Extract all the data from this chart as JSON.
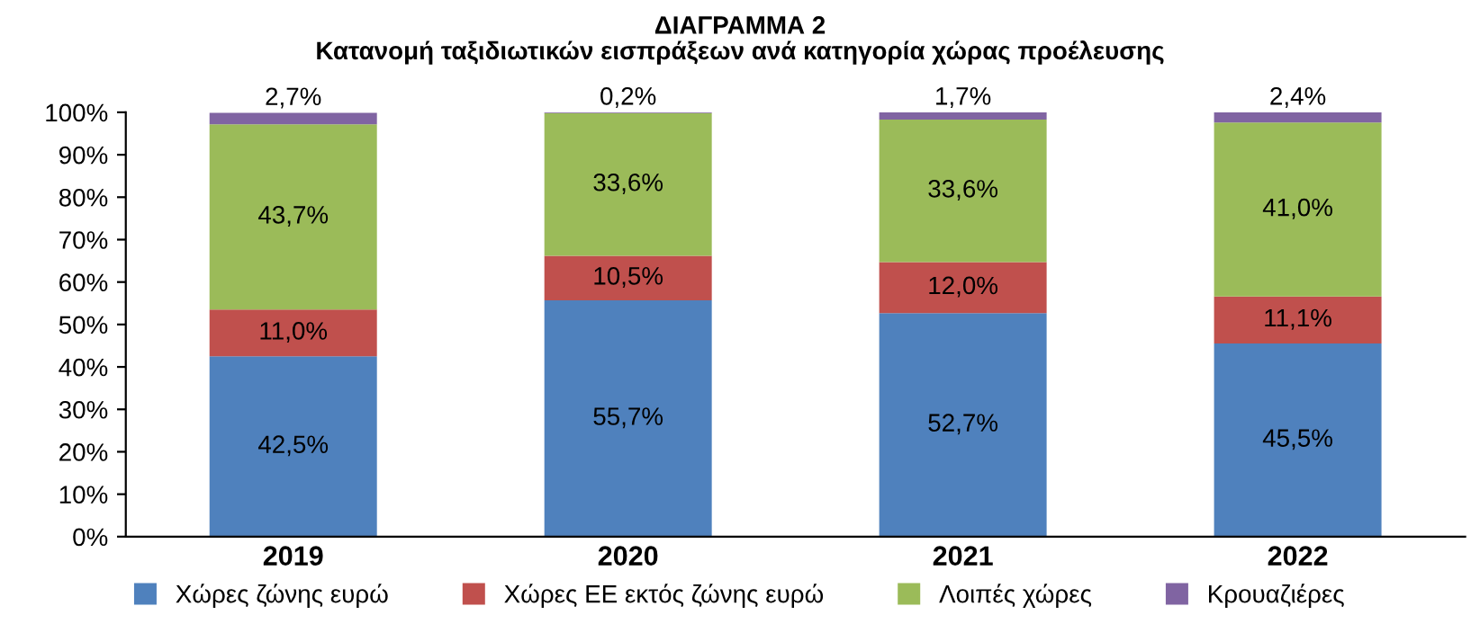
{
  "chart_data": {
    "type": "bar",
    "stacked": true,
    "title": "ΔΙΑΓΡΑΜΜΑ 2",
    "subtitle": "Κατανομή ταξιδιωτικών εισπράξεων ανά κατηγορία χώρας προέλευσης",
    "categories": [
      "2019",
      "2020",
      "2021",
      "2022"
    ],
    "series": [
      {
        "name": "Χώρες ζώνης ευρώ",
        "color": "#4f81bd",
        "values": [
          42.5,
          55.7,
          52.7,
          45.5
        ],
        "value_labels": [
          "42,5%",
          "55,7%",
          "52,7%",
          "45,5%"
        ]
      },
      {
        "name": "Χώρες ΕΕ εκτός ζώνης ευρώ",
        "color": "#c0504d",
        "values": [
          11.0,
          10.5,
          12.0,
          11.1
        ],
        "value_labels": [
          "11,0%",
          "10,5%",
          "12,0%",
          "11,1%"
        ]
      },
      {
        "name": "Λοιπές χώρες",
        "color": "#9bbb59",
        "values": [
          43.7,
          33.6,
          33.6,
          41.0
        ],
        "value_labels": [
          "43,7%",
          "33,6%",
          "33,6%",
          "41,0%"
        ]
      },
      {
        "name": "Κρουαζιέρες",
        "color": "#8064a2",
        "values": [
          2.7,
          0.2,
          1.7,
          2.4
        ],
        "value_labels": [
          "2,7%",
          "0,2%",
          "1,7%",
          "2,4%"
        ]
      }
    ],
    "ylim": [
      0,
      100
    ],
    "yticks": [
      {
        "value": 0,
        "label": "0%"
      },
      {
        "value": 10,
        "label": "10%"
      },
      {
        "value": 20,
        "label": "20%"
      },
      {
        "value": 30,
        "label": "30%"
      },
      {
        "value": 40,
        "label": "40%"
      },
      {
        "value": 50,
        "label": "50%"
      },
      {
        "value": 60,
        "label": "60%"
      },
      {
        "value": 70,
        "label": "70%"
      },
      {
        "value": 80,
        "label": "80%"
      },
      {
        "value": 90,
        "label": "90%"
      },
      {
        "value": 100,
        "label": "100%"
      }
    ],
    "grid": false,
    "legend": "bottom"
  }
}
